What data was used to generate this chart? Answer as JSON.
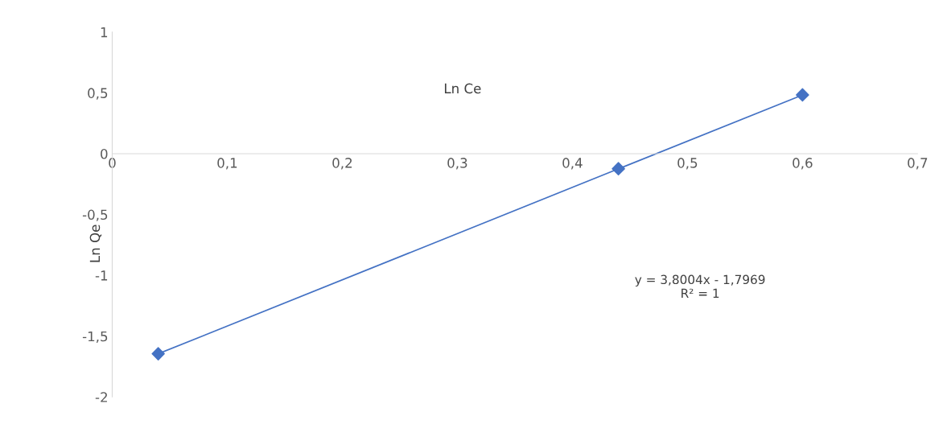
{
  "chart_data": {
    "type": "scatter",
    "xlabel": "Ln Ce",
    "ylabel": "Ln Qe",
    "grid": false,
    "legend": false,
    "series": [
      {
        "color": "#4472c4",
        "marker": "diamond",
        "x": [
          0.04,
          0.44,
          0.6
        ],
        "values": [
          -1.645,
          -0.124,
          0.483
        ]
      },
      {
        "type": "line",
        "color": "#4472c4",
        "x": [
          0.04,
          0.6
        ],
        "values": [
          -1.645,
          0.483
        ]
      }
    ],
    "xlim": [
      0,
      0.7
    ],
    "ylim": [
      -2,
      1
    ],
    "xticks": [
      0,
      {
        "value": 0.1,
        "label": "0,1"
      },
      {
        "value": 0.2,
        "label": "0,2"
      },
      {
        "value": 0.3,
        "label": "0,3"
      },
      {
        "value": 0.4,
        "label": "0,4"
      },
      {
        "value": 0.5,
        "label": "0,5"
      },
      {
        "value": 0.6,
        "label": "0,6"
      },
      {
        "value": 0.7,
        "label": "0,7"
      }
    ],
    "yticks": [
      -2,
      {
        "value": -1.5,
        "label": "-1,5"
      },
      -1,
      {
        "value": -0.5,
        "label": "-0,5"
      },
      0,
      {
        "value": 0.5,
        "label": "0,5"
      },
      1
    ],
    "annotations": [
      "y = 3,8004x - 1,7969\nR² = 1"
    ]
  }
}
